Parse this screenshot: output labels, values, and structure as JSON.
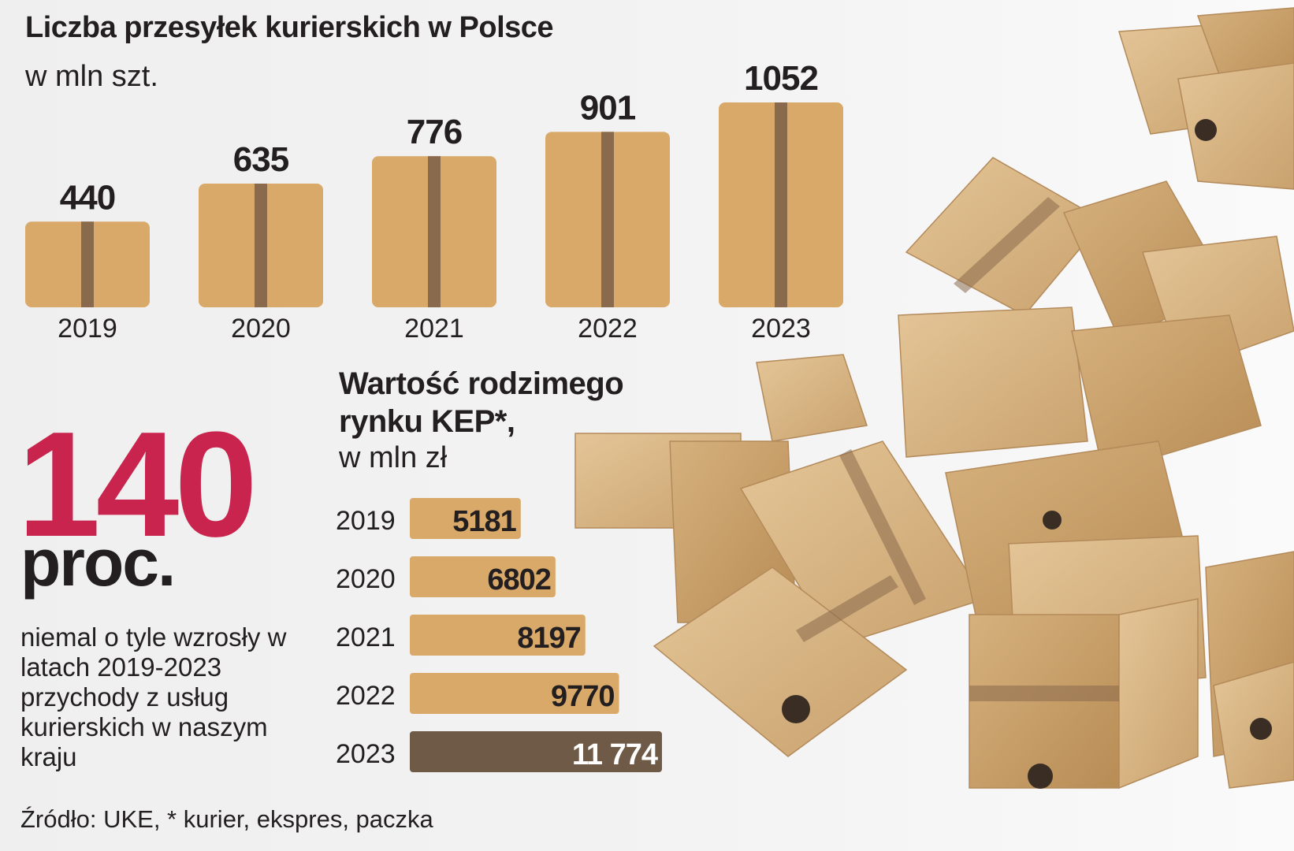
{
  "chart_data": [
    {
      "type": "bar",
      "title": "Liczba przesyłek kurierskich w Polsce",
      "subtitle": "w mln szt.",
      "categories": [
        "2019",
        "2020",
        "2021",
        "2022",
        "2023"
      ],
      "values": [
        440,
        635,
        776,
        901,
        1052
      ],
      "value_labels": [
        "440",
        "635",
        "776",
        "901",
        "1052"
      ],
      "ylim": [
        0,
        1052
      ],
      "grid": false,
      "legend": "none",
      "colors": {
        "box": "#d9a96a",
        "tape": "#8a6a4c"
      }
    },
    {
      "type": "bar",
      "orientation": "horizontal",
      "title": "Wartość rodzimego rynku KEP*,",
      "subtitle": "w mln zł",
      "categories": [
        "2019",
        "2020",
        "2021",
        "2022",
        "2023"
      ],
      "values": [
        5181,
        6802,
        8197,
        9770,
        11774
      ],
      "value_labels": [
        "5181",
        "6802",
        "8197",
        "9770",
        "11 774"
      ],
      "xlim": [
        0,
        11774
      ],
      "grid": false,
      "legend": "none",
      "colors": {
        "bar": "#d9a96a",
        "highlight": "#6e5a47",
        "highlight_text": "#ffffff"
      }
    }
  ],
  "highlight": {
    "value": "140",
    "unit": "proc.",
    "description": "niemal o tyle wzrosły w latach 2019-2023 przychody z usług kurierskich w naszym kraju",
    "color": "#c8244e"
  },
  "source": "Źródło: UKE, * kurier, ekspres, paczka"
}
